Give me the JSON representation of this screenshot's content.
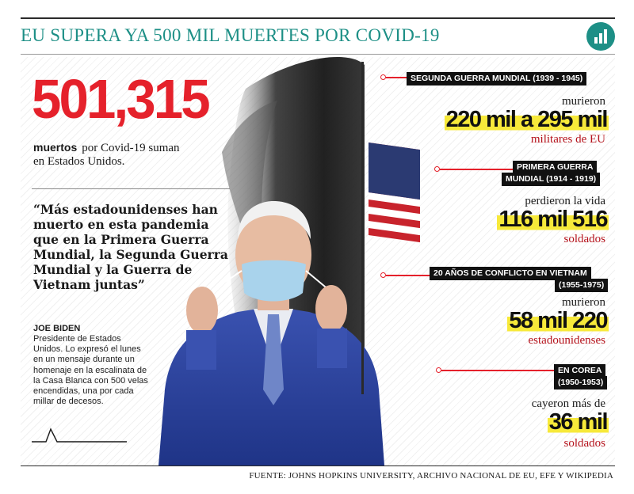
{
  "header": {
    "title": "EU SUPERA YA 500 MIL MUERTES POR COVID-19",
    "badge_icon": "bar-chart-icon"
  },
  "colors": {
    "accent_teal": "#1d8f86",
    "accent_red": "#e5212b",
    "highlight_yellow": "#f7e93a",
    "label_black": "#111111"
  },
  "main_stat": {
    "number": "501,315",
    "label_bold": "muertos",
    "label_rest": "por Covid-19 suman",
    "label_line2": "en Estados Unidos."
  },
  "quote": {
    "text": "“Más estadounidenses han muerto en esta pandemia que en la Primera Guerra Mundial, la Segunda Guerra Mundial y la Guerra de Vietnam juntas”",
    "speaker": "JOE BIDEN",
    "description": "Presidente de Estados Unidos. Lo expresó el lunes en un mensaje durante un homenaje en la escalinata de la Casa Blanca con 500 velas encendidas, una por cada millar de decesos."
  },
  "conflicts": [
    {
      "label_lines": [
        "SEGUNDA GUERRA MUNDIAL (1939 - 1945)"
      ],
      "verb": "murieron",
      "figure": "220 mil a 295 mil",
      "unit": "militares de EU"
    },
    {
      "label_lines": [
        "PRIMERA GUERRA",
        "MUNDIAL (1914 - 1919)"
      ],
      "verb": "perdieron la vida",
      "figure": "116 mil 516",
      "unit": "soldados"
    },
    {
      "label_lines": [
        "20 AÑOS DE CONFLICTO EN VIETNAM",
        "(1955-1975)"
      ],
      "verb": "murieron",
      "figure": "58 mil 220",
      "unit": "estadounidenses"
    },
    {
      "label_lines": [
        "EN COREA",
        "(1950-1953)"
      ],
      "verb": "cayeron más de",
      "figure": "36 mil",
      "unit": "soldados"
    }
  ],
  "footer": {
    "source": "FUENTE: JOHNS HOPKINS UNIVERSITY, ARCHIVO NACIONAL DE EU, EFE Y WIKIPEDIA"
  }
}
